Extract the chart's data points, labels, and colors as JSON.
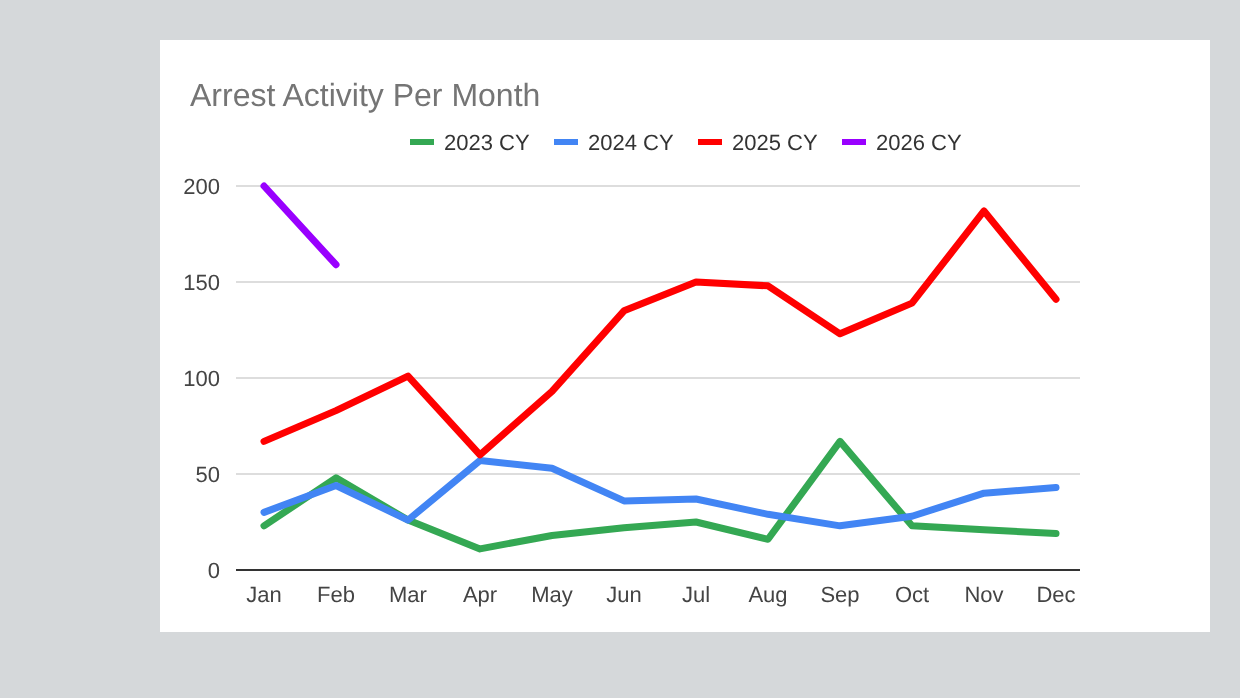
{
  "chart_data": {
    "type": "line",
    "title": "Arrest Activity Per Month",
    "categories": [
      "Jan",
      "Feb",
      "Mar",
      "Apr",
      "May",
      "Jun",
      "Jul",
      "Aug",
      "Sep",
      "Oct",
      "Nov",
      "Dec"
    ],
    "series": [
      {
        "name": "2023 CY",
        "color": "#34a853",
        "values": [
          23,
          48,
          26,
          11,
          18,
          22,
          25,
          16,
          67,
          23,
          21,
          19
        ]
      },
      {
        "name": "2024 CY",
        "color": "#4285f4",
        "values": [
          30,
          44,
          26,
          57,
          53,
          36,
          37,
          29,
          23,
          28,
          40,
          43
        ]
      },
      {
        "name": "2025 CY",
        "color": "#ff0000",
        "values": [
          67,
          83,
          101,
          60,
          93,
          135,
          150,
          148,
          123,
          139,
          187,
          141
        ]
      },
      {
        "name": "2026 CY",
        "color": "#9900ff",
        "values": [
          200,
          159,
          null,
          null,
          null,
          null,
          null,
          null,
          null,
          null,
          null,
          null
        ]
      }
    ],
    "ylim": [
      0,
      200
    ],
    "yticks": [
      0,
      50,
      100,
      150,
      200
    ],
    "grid": "y",
    "legend": "top",
    "marker": "none",
    "line_style": "solid"
  }
}
